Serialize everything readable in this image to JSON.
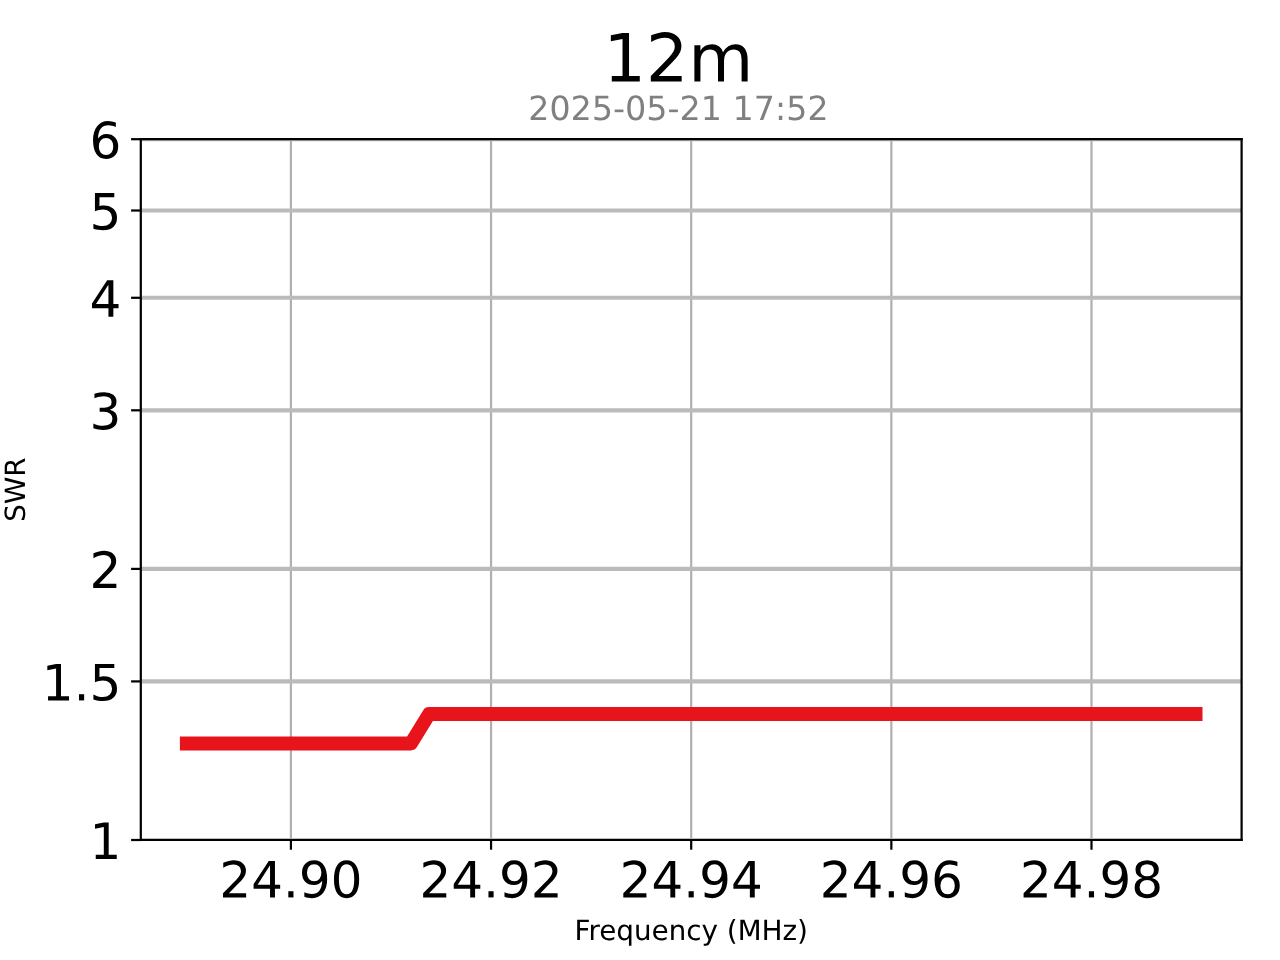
{
  "chart_data": {
    "type": "line",
    "title": "12m",
    "subtitle": "2025-05-21 17:52",
    "xlabel": "Frequency (MHz)",
    "ylabel": "SWR",
    "series": [
      {
        "color": "#e8141c",
        "x": [
          24.8896,
          24.912,
          24.9138,
          24.9904
        ],
        "values": [
          1.28,
          1.28,
          1.38,
          1.38
        ]
      }
    ],
    "xlim": [
      24.885,
      24.995
    ],
    "xticks": [
      {
        "value": 24.9,
        "label": "24.90"
      },
      {
        "value": 24.92,
        "label": "24.92"
      },
      {
        "value": 24.94,
        "label": "24.94"
      },
      {
        "value": 24.96,
        "label": "24.96"
      },
      {
        "value": 24.98,
        "label": "24.98"
      }
    ],
    "ylim": [
      1,
      6
    ],
    "yticks": [
      1,
      1.5,
      2,
      3,
      4,
      5,
      6
    ],
    "grid": true,
    "log": true,
    "line_style": "solid"
  }
}
